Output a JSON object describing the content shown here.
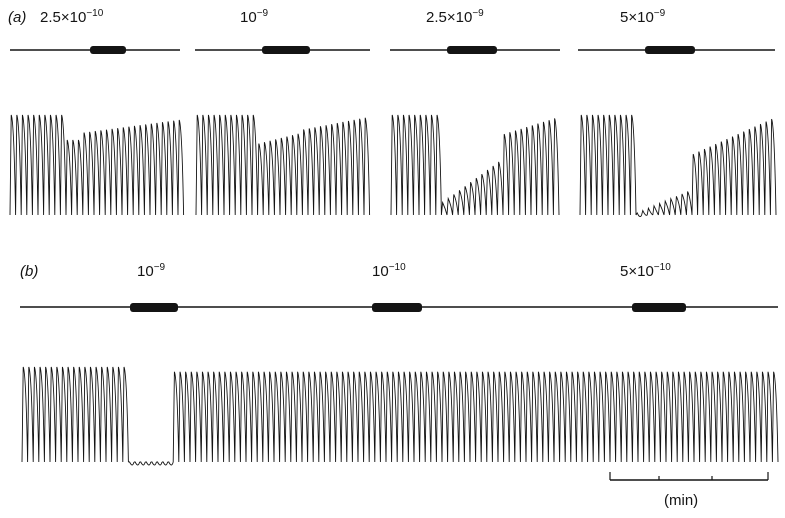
{
  "panel_a": {
    "label": "(a)",
    "doses": [
      {
        "base": "2.5",
        "times": "×",
        "ten": "10",
        "exp": "−10"
      },
      {
        "base": "",
        "times": "",
        "ten": "10",
        "exp": "−9"
      },
      {
        "base": "2.5",
        "times": "×",
        "ten": "10",
        "exp": "−9"
      },
      {
        "base": "5",
        "times": "×",
        "ten": "10",
        "exp": "−9"
      }
    ]
  },
  "panel_b": {
    "label": "(b)",
    "doses": [
      {
        "base": "",
        "times": "",
        "ten": "10",
        "exp": "−9"
      },
      {
        "base": "",
        "times": "",
        "ten": "10",
        "exp": "−10"
      },
      {
        "base": "5",
        "times": "×",
        "ten": "10",
        "exp": "−10"
      }
    ]
  },
  "scale_bar": {
    "label": "(min)"
  },
  "colors": {
    "ink": "#141414",
    "background": "#ffffff"
  }
}
